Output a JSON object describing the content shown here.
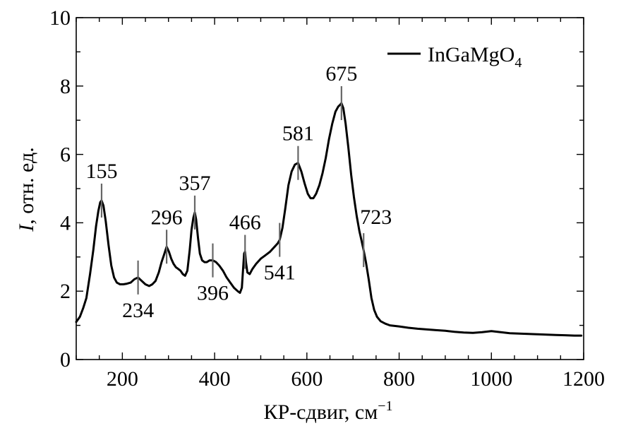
{
  "chart_data": {
    "type": "line",
    "xlabel": "КР-сдвиг, см",
    "xlabel_superscript": "−1",
    "ylabel_italic": "I",
    "ylabel_rest": ", отн. ед.",
    "xlim": [
      100,
      1200
    ],
    "ylim": [
      0,
      10
    ],
    "x_ticks": [
      200,
      400,
      600,
      800,
      1000,
      1200
    ],
    "y_ticks": [
      0,
      2,
      4,
      6,
      8,
      10
    ],
    "legend_position": "top-right",
    "series": [
      {
        "name": "InGaMgO",
        "name_subscript": "4",
        "color": "#000000",
        "points": [
          [
            100,
            1.1
          ],
          [
            108,
            1.25
          ],
          [
            115,
            1.5
          ],
          [
            122,
            1.8
          ],
          [
            130,
            2.5
          ],
          [
            137,
            3.2
          ],
          [
            143,
            3.9
          ],
          [
            148,
            4.35
          ],
          [
            152,
            4.6
          ],
          [
            155,
            4.65
          ],
          [
            159,
            4.5
          ],
          [
            164,
            4.05
          ],
          [
            170,
            3.35
          ],
          [
            176,
            2.75
          ],
          [
            182,
            2.4
          ],
          [
            188,
            2.25
          ],
          [
            195,
            2.2
          ],
          [
            202,
            2.2
          ],
          [
            210,
            2.22
          ],
          [
            218,
            2.25
          ],
          [
            226,
            2.35
          ],
          [
            234,
            2.4
          ],
          [
            242,
            2.3
          ],
          [
            250,
            2.2
          ],
          [
            258,
            2.15
          ],
          [
            265,
            2.2
          ],
          [
            272,
            2.3
          ],
          [
            279,
            2.55
          ],
          [
            285,
            2.85
          ],
          [
            290,
            3.05
          ],
          [
            296,
            3.3
          ],
          [
            301,
            3.15
          ],
          [
            306,
            2.95
          ],
          [
            311,
            2.8
          ],
          [
            316,
            2.7
          ],
          [
            321,
            2.65
          ],
          [
            326,
            2.6
          ],
          [
            331,
            2.5
          ],
          [
            336,
            2.45
          ],
          [
            341,
            2.6
          ],
          [
            346,
            3.2
          ],
          [
            350,
            3.8
          ],
          [
            354,
            4.15
          ],
          [
            357,
            4.3
          ],
          [
            360,
            4.1
          ],
          [
            364,
            3.55
          ],
          [
            368,
            3.1
          ],
          [
            373,
            2.9
          ],
          [
            378,
            2.85
          ],
          [
            383,
            2.85
          ],
          [
            389,
            2.9
          ],
          [
            396,
            2.9
          ],
          [
            403,
            2.85
          ],
          [
            410,
            2.75
          ],
          [
            418,
            2.6
          ],
          [
            426,
            2.4
          ],
          [
            434,
            2.25
          ],
          [
            442,
            2.1
          ],
          [
            450,
            2.0
          ],
          [
            455,
            1.95
          ],
          [
            459,
            2.1
          ],
          [
            462,
            2.7
          ],
          [
            464,
            3.1
          ],
          [
            466,
            3.15
          ],
          [
            468,
            2.85
          ],
          [
            471,
            2.55
          ],
          [
            476,
            2.5
          ],
          [
            482,
            2.65
          ],
          [
            490,
            2.8
          ],
          [
            500,
            2.95
          ],
          [
            510,
            3.05
          ],
          [
            520,
            3.15
          ],
          [
            530,
            3.3
          ],
          [
            537,
            3.4
          ],
          [
            541,
            3.5
          ],
          [
            547,
            3.85
          ],
          [
            553,
            4.4
          ],
          [
            560,
            5.1
          ],
          [
            567,
            5.5
          ],
          [
            574,
            5.7
          ],
          [
            581,
            5.75
          ],
          [
            588,
            5.5
          ],
          [
            595,
            5.15
          ],
          [
            602,
            4.85
          ],
          [
            608,
            4.72
          ],
          [
            614,
            4.72
          ],
          [
            620,
            4.85
          ],
          [
            627,
            5.1
          ],
          [
            634,
            5.45
          ],
          [
            641,
            5.9
          ],
          [
            648,
            6.45
          ],
          [
            655,
            6.9
          ],
          [
            662,
            7.25
          ],
          [
            668,
            7.4
          ],
          [
            672,
            7.45
          ],
          [
            675,
            7.5
          ],
          [
            679,
            7.35
          ],
          [
            684,
            6.9
          ],
          [
            690,
            6.2
          ],
          [
            696,
            5.4
          ],
          [
            702,
            4.75
          ],
          [
            708,
            4.2
          ],
          [
            714,
            3.75
          ],
          [
            719,
            3.45
          ],
          [
            723,
            3.2
          ],
          [
            728,
            2.85
          ],
          [
            734,
            2.35
          ],
          [
            740,
            1.8
          ],
          [
            746,
            1.45
          ],
          [
            752,
            1.25
          ],
          [
            760,
            1.12
          ],
          [
            770,
            1.05
          ],
          [
            780,
            1.0
          ],
          [
            800,
            0.97
          ],
          [
            820,
            0.93
          ],
          [
            840,
            0.9
          ],
          [
            860,
            0.88
          ],
          [
            880,
            0.86
          ],
          [
            900,
            0.84
          ],
          [
            920,
            0.81
          ],
          [
            940,
            0.79
          ],
          [
            960,
            0.78
          ],
          [
            980,
            0.8
          ],
          [
            1000,
            0.83
          ],
          [
            1020,
            0.8
          ],
          [
            1040,
            0.77
          ],
          [
            1060,
            0.76
          ],
          [
            1080,
            0.75
          ],
          [
            1100,
            0.74
          ],
          [
            1120,
            0.73
          ],
          [
            1140,
            0.72
          ],
          [
            1160,
            0.71
          ],
          [
            1180,
            0.7
          ],
          [
            1195,
            0.7
          ]
        ]
      }
    ],
    "annotations": [
      {
        "label": "155",
        "x": 155,
        "position": "above"
      },
      {
        "label": "234",
        "x": 234,
        "position": "below"
      },
      {
        "label": "296",
        "x": 296,
        "position": "above"
      },
      {
        "label": "357",
        "x": 357,
        "position": "above"
      },
      {
        "label": "396",
        "x": 396,
        "position": "below"
      },
      {
        "label": "466",
        "x": 466,
        "position": "above"
      },
      {
        "label": "541",
        "x": 541,
        "position": "below"
      },
      {
        "label": "581",
        "x": 581,
        "position": "above"
      },
      {
        "label": "675",
        "x": 675,
        "position": "above"
      },
      {
        "label": "723",
        "x": 723,
        "position": "above-right"
      }
    ]
  }
}
